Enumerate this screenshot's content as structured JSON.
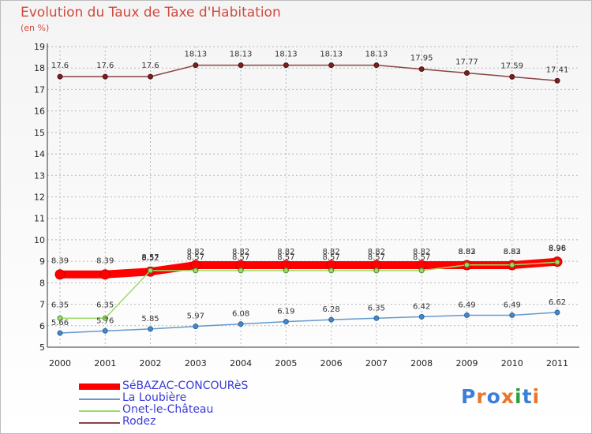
{
  "header": {
    "title": "Evolution du Taux de Taxe d'Habitation",
    "unit": "(en %)"
  },
  "logo": {
    "text": "Proxiti",
    "colors": [
      "#3b7fd6",
      "#e8762b",
      "#3b7fd6",
      "#e8762b",
      "#2e9e45",
      "#3b7fd6",
      "#e8762b"
    ]
  },
  "chart_data": {
    "type": "line",
    "categories": [
      "2000",
      "2001",
      "2002",
      "2003",
      "2004",
      "2005",
      "2006",
      "2007",
      "2008",
      "2009",
      "2010",
      "2011"
    ],
    "ylim": [
      5,
      19
    ],
    "yticks": [
      5,
      6,
      7,
      8,
      9,
      10,
      11,
      12,
      13,
      14,
      15,
      16,
      17,
      18,
      19
    ],
    "grid": true,
    "series": [
      {
        "name": "SéBAZAC-CONCOURèS",
        "color": "#ff0000",
        "values": [
          8.39,
          8.39,
          8.52,
          8.82,
          8.82,
          8.82,
          8.82,
          8.82,
          8.82,
          8.82,
          8.82,
          8.98
        ],
        "labels": [
          "8.39",
          "8.39",
          "8.52",
          "8.82",
          "8.82",
          "8.82",
          "8.82",
          "8.82",
          "8.82",
          "8.82",
          "8.82",
          "8.98"
        ]
      },
      {
        "name": "La Loubière",
        "color": "#6699cc",
        "values": [
          5.66,
          5.76,
          5.85,
          5.97,
          6.08,
          6.19,
          6.28,
          6.35,
          6.42,
          6.49,
          6.49,
          6.62
        ],
        "labels": [
          "5.66",
          "5.76",
          "5.85",
          "5.97",
          "6.08",
          "6.19",
          "6.28",
          "6.35",
          "6.42",
          "6.49",
          "6.49",
          "6.62"
        ]
      },
      {
        "name": "Onet-le-Château",
        "color": "#99dd66",
        "values": [
          6.35,
          6.35,
          8.57,
          8.57,
          8.57,
          8.57,
          8.57,
          8.57,
          8.57,
          8.83,
          8.83,
          8.96
        ],
        "labels": [
          "6.35",
          "6.35",
          "8.57",
          "8.57",
          "8.57",
          "8.57",
          "8.57",
          "8.57",
          "8.57",
          "8.83",
          "8.83",
          "8.96"
        ]
      },
      {
        "name": "Rodez",
        "color": "#884444",
        "values": [
          17.6,
          17.6,
          17.6,
          18.13,
          18.13,
          18.13,
          18.13,
          18.13,
          17.95,
          17.77,
          17.59,
          17.41
        ],
        "labels": [
          "17.6",
          "17.6",
          "17.6",
          "18.13",
          "18.13",
          "18.13",
          "18.13",
          "18.13",
          "17.95",
          "17.77",
          "17.59",
          "17.41"
        ]
      }
    ]
  }
}
